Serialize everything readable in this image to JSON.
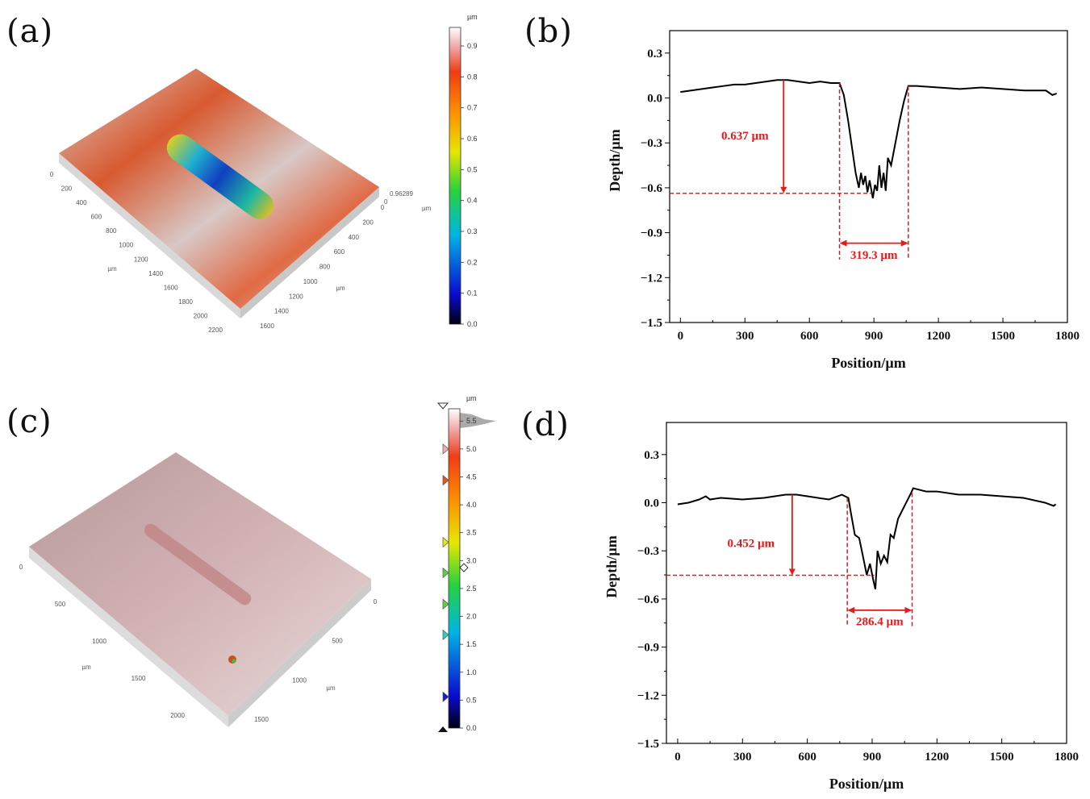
{
  "panels": {
    "a": "(a)",
    "b": "(b)",
    "c": "(c)",
    "d": "(d)"
  },
  "colors": {
    "annotation": "#e41a1c",
    "profile": "#000000"
  },
  "surface_a": {
    "x_ticks": [
      "0",
      "200",
      "400",
      "600",
      "800",
      "1000",
      "1200",
      "1400",
      "1600",
      "1800",
      "2000",
      "2200"
    ],
    "y_ticks": [
      "0",
      "200",
      "400",
      "600",
      "800",
      "1000",
      "1200",
      "1400",
      "1600"
    ],
    "x_unit": "µm",
    "y_unit": "µm",
    "z_max": "0.96289",
    "z_min": "0",
    "z_unit": "µm",
    "colorbar": {
      "unit": "µm",
      "ticks": [
        "0.0",
        "0.1",
        "0.2",
        "0.3",
        "0.4",
        "0.5",
        "0.6",
        "0.7",
        "0.8",
        "0.9"
      ],
      "range": [
        0,
        0.96
      ]
    }
  },
  "surface_c": {
    "x_ticks": [
      "0",
      "500",
      "1000",
      "1500",
      "2000"
    ],
    "y_ticks": [
      "0",
      "500",
      "1000",
      "1500"
    ],
    "x_unit": "µm",
    "y_unit": "µm",
    "colorbar": {
      "unit": "µm",
      "ticks": [
        "0.0",
        "0.5",
        "1.0",
        "1.5",
        "2.0",
        "2.5",
        "3.0",
        "3.5",
        "4.0",
        "4.5",
        "5.0",
        "5.5"
      ],
      "range": [
        0,
        5.72
      ],
      "markers": [
        5.0,
        4.44,
        3.33,
        2.78,
        2.22,
        1.67,
        0.56
      ]
    }
  },
  "chart_data": [
    {
      "type": "line",
      "id": "b",
      "xlabel": "Position/µm",
      "ylabel": "Depth/µm",
      "xlim": [
        -50,
        1800
      ],
      "ylim": [
        -1.5,
        0.45
      ],
      "xticks": [
        0,
        300,
        600,
        900,
        1200,
        1500,
        1800
      ],
      "yticks": [
        0.3,
        0.0,
        -0.3,
        -0.6,
        -0.9,
        -1.2,
        -1.5
      ],
      "ytick_labels": [
        "0.3",
        "0.0",
        "−0.3",
        "−0.6",
        "−0.9",
        "−1.2",
        "−1.5"
      ],
      "series": [
        {
          "name": "profile",
          "points": [
            [
              0,
              0.04
            ],
            [
              50,
              0.05
            ],
            [
              100,
              0.06
            ],
            [
              150,
              0.07
            ],
            [
              200,
              0.08
            ],
            [
              250,
              0.09
            ],
            [
              300,
              0.09
            ],
            [
              350,
              0.1
            ],
            [
              400,
              0.11
            ],
            [
              450,
              0.12
            ],
            [
              500,
              0.12
            ],
            [
              550,
              0.11
            ],
            [
              600,
              0.1
            ],
            [
              650,
              0.11
            ],
            [
              700,
              0.1
            ],
            [
              740,
              0.1
            ],
            [
              760,
              0.02
            ],
            [
              780,
              -0.15
            ],
            [
              800,
              -0.35
            ],
            [
              815,
              -0.5
            ],
            [
              830,
              -0.6
            ],
            [
              840,
              -0.5
            ],
            [
              850,
              -0.58
            ],
            [
              860,
              -0.52
            ],
            [
              870,
              -0.63
            ],
            [
              880,
              -0.55
            ],
            [
              895,
              -0.67
            ],
            [
              905,
              -0.58
            ],
            [
              915,
              -0.62
            ],
            [
              925,
              -0.45
            ],
            [
              935,
              -0.6
            ],
            [
              945,
              -0.5
            ],
            [
              955,
              -0.62
            ],
            [
              965,
              -0.4
            ],
            [
              980,
              -0.45
            ],
            [
              1000,
              -0.3
            ],
            [
              1020,
              -0.15
            ],
            [
              1040,
              -0.02
            ],
            [
              1060,
              0.08
            ],
            [
              1100,
              0.08
            ],
            [
              1200,
              0.07
            ],
            [
              1300,
              0.06
            ],
            [
              1400,
              0.07
            ],
            [
              1500,
              0.06
            ],
            [
              1600,
              0.05
            ],
            [
              1700,
              0.05
            ],
            [
              1730,
              0.02
            ],
            [
              1750,
              0.03
            ]
          ]
        }
      ],
      "annotations": {
        "depth_label": "0.637 µm",
        "depth_x": 480,
        "depth_top": 0.12,
        "depth_bottom": -0.637,
        "depth_label_pos": [
          190,
          -0.25
        ],
        "width_label": "319.3 µm",
        "width_x": [
          740,
          1060
        ],
        "width_y": -0.97,
        "width_dashed_bottom": -1.08,
        "dashed_y_end_x": 890
      }
    },
    {
      "type": "line",
      "id": "d",
      "xlabel": "Position/µm",
      "ylabel": "Depth/µm",
      "xlim": [
        -52,
        1800
      ],
      "ylim": [
        -1.5,
        0.5
      ],
      "xticks": [
        0,
        300,
        600,
        900,
        1200,
        1500,
        1800
      ],
      "yticks": [
        0.3,
        0.0,
        -0.3,
        -0.6,
        -0.9,
        -1.2,
        -1.5
      ],
      "ytick_labels": [
        "0.3",
        "0.0",
        "−0.3",
        "−0.6",
        "−0.9",
        "−1.2",
        "−1.5"
      ],
      "series": [
        {
          "name": "profile",
          "points": [
            [
              0,
              -0.01
            ],
            [
              50,
              0.0
            ],
            [
              100,
              0.02
            ],
            [
              130,
              0.04
            ],
            [
              150,
              0.02
            ],
            [
              200,
              0.03
            ],
            [
              300,
              0.02
            ],
            [
              400,
              0.03
            ],
            [
              500,
              0.05
            ],
            [
              550,
              0.05
            ],
            [
              600,
              0.04
            ],
            [
              700,
              0.02
            ],
            [
              760,
              0.05
            ],
            [
              790,
              0.03
            ],
            [
              800,
              -0.05
            ],
            [
              820,
              -0.2
            ],
            [
              840,
              -0.22
            ],
            [
              860,
              -0.35
            ],
            [
              875,
              -0.45
            ],
            [
              890,
              -0.38
            ],
            [
              905,
              -0.48
            ],
            [
              915,
              -0.54
            ],
            [
              925,
              -0.3
            ],
            [
              940,
              -0.38
            ],
            [
              955,
              -0.33
            ],
            [
              970,
              -0.37
            ],
            [
              985,
              -0.2
            ],
            [
              1000,
              -0.22
            ],
            [
              1020,
              -0.1
            ],
            [
              1050,
              -0.02
            ],
            [
              1080,
              0.06
            ],
            [
              1090,
              0.09
            ],
            [
              1150,
              0.07
            ],
            [
              1200,
              0.07
            ],
            [
              1300,
              0.05
            ],
            [
              1400,
              0.05
            ],
            [
              1500,
              0.04
            ],
            [
              1600,
              0.03
            ],
            [
              1700,
              0.0
            ],
            [
              1740,
              -0.02
            ],
            [
              1750,
              -0.01
            ]
          ]
        }
      ],
      "annotations": {
        "depth_label": "0.452 µm",
        "depth_x": 530,
        "depth_top": 0.05,
        "depth_bottom": -0.452,
        "depth_label_pos": [
          230,
          -0.25
        ],
        "width_label": "286.4 µm",
        "width_x": [
          785,
          1085
        ],
        "width_y": -0.67,
        "width_dashed_bottom": -0.77,
        "dashed_y_end_x": 910
      }
    }
  ]
}
